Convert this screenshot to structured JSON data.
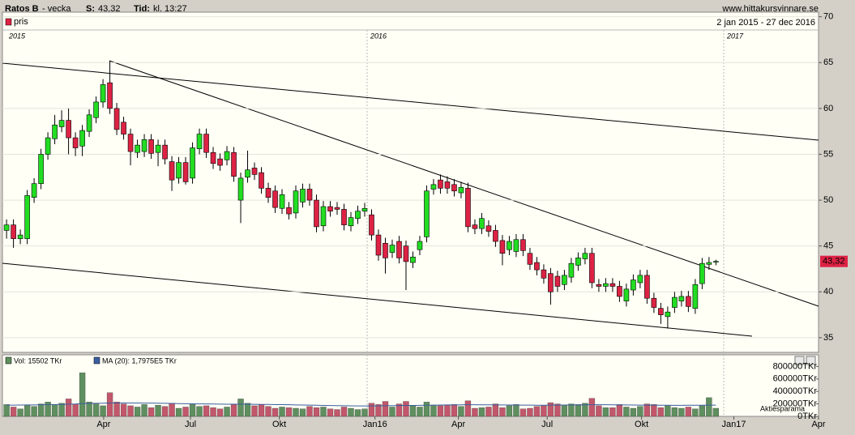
{
  "chart_data": {
    "type": "candlestick",
    "title": "Ratos B",
    "subtitle": "- vecka",
    "quote_label": "S:",
    "quote": "43,32",
    "time_label": "Tid:",
    "time": "kl. 13:27",
    "source": "www.hittakursvinnare.se",
    "legend": "pris",
    "date_range": "2 jan 2015 - 27 dec 2016",
    "year_labels": [
      "2015",
      "2016",
      "2017"
    ],
    "up_color": "#22dd22",
    "down_color": "#dd2244",
    "open": [
      46.7,
      47.3,
      45.8,
      45.8,
      50.3,
      51.8,
      55,
      56.7,
      58,
      58.7,
      56.8,
      55.9,
      57.5,
      59,
      60.7,
      62.8,
      60,
      58.5,
      57.2,
      55.2,
      55.3,
      56.6,
      55.2,
      56,
      54.2,
      52.4,
      54.1,
      52.4,
      55.6,
      57.2,
      55.2,
      54.5,
      54.4,
      55.2,
      50,
      52.5,
      53.5,
      53,
      51.3,
      51,
      49.1,
      49.2,
      48.6,
      49.8,
      51.2,
      50,
      47.2,
      49.3,
      49.2,
      49,
      47.2,
      48,
      48.8,
      48.4,
      46.2,
      45.3,
      44.3,
      45.5,
      45,
      43.2,
      44.6,
      46,
      51.2,
      52.2,
      52,
      51.7,
      50.8,
      51.3,
      47.3,
      46.9,
      47.2,
      46.7,
      45.6,
      44.6,
      44.4,
      45.7,
      44.2,
      43.2,
      42.4,
      42,
      41.7,
      40.8,
      41.6,
      42.9,
      43.6,
      44.2,
      40.8,
      40.6,
      40.9,
      40.6,
      39,
      40.2,
      41,
      41.8,
      39.3,
      38.2,
      37.3,
      38.3,
      39,
      39.5,
      38.2,
      40.9,
      43,
      43.3
    ],
    "high": [
      47.9,
      47.9,
      46.8,
      51.1,
      52.4,
      55.6,
      57.4,
      59.3,
      59.8,
      60,
      57.4,
      58.2,
      59.9,
      61.3,
      63.2,
      65.2,
      60.6,
      59.1,
      57.8,
      56.6,
      57.2,
      57.2,
      56.6,
      56.6,
      54.8,
      54.7,
      54.7,
      56.3,
      57.8,
      57.8,
      55.8,
      55.1,
      55.9,
      55.8,
      53,
      55.4,
      54.1,
      53.6,
      51.9,
      51.6,
      51.2,
      49.8,
      51.6,
      51.8,
      51.8,
      50.6,
      49.9,
      49.9,
      49.8,
      49.6,
      48.7,
      49.4,
      49.7,
      49,
      46.8,
      45.9,
      45.7,
      46.1,
      45.6,
      44.4,
      46.1,
      51.6,
      52.3,
      52.8,
      52.6,
      52.3,
      52,
      51.9,
      47.9,
      48.6,
      47.8,
      47.3,
      46.2,
      46.1,
      46.3,
      46.3,
      44.8,
      43.8,
      43,
      42.6,
      42.3,
      42.4,
      43.7,
      44.3,
      44.8,
      44.8,
      41.4,
      41.5,
      41.5,
      41.2,
      40.9,
      41.9,
      42.4,
      42.4,
      39.9,
      38.8,
      38.4,
      40,
      40.1,
      40.1,
      41.4,
      43.7,
      43.8,
      43.5
    ],
    "low": [
      45.8,
      44.8,
      45.2,
      45.2,
      49.7,
      51.2,
      54.4,
      56.1,
      57.4,
      55,
      54.8,
      54.8,
      56.9,
      58.4,
      60.1,
      59.4,
      57.1,
      56.6,
      53.8,
      54.6,
      54.7,
      54.5,
      53.7,
      53.9,
      51,
      51.8,
      51.7,
      51.8,
      55,
      54.6,
      53.4,
      53.2,
      53.8,
      52,
      47.5,
      51.9,
      52.2,
      50.7,
      49.7,
      48.6,
      48.5,
      47.9,
      48,
      49.2,
      49.4,
      46.5,
      46.6,
      48.2,
      48.4,
      46.7,
      46.6,
      47.4,
      48.2,
      45.6,
      43.4,
      42,
      43.7,
      43.1,
      40.2,
      42.6,
      44,
      45.4,
      50.6,
      50.7,
      50.7,
      50.4,
      50.2,
      46.5,
      46.3,
      46.3,
      46,
      44.9,
      42.9,
      44,
      43.8,
      43.9,
      42.4,
      41.8,
      40.9,
      38.6,
      40,
      40.2,
      41,
      42.3,
      43,
      40.4,
      40,
      40,
      40,
      38.9,
      38.4,
      39.6,
      40.4,
      38.7,
      37.7,
      36.5,
      36,
      37.7,
      38.4,
      37.8,
      37.6,
      40.3,
      42.4,
      42.9
    ],
    "close": [
      47.3,
      45.8,
      46.2,
      50.5,
      51.8,
      55,
      56.8,
      58.2,
      58.7,
      56.8,
      55.7,
      57.6,
      59.3,
      60.7,
      62.6,
      60,
      57.7,
      57.2,
      55.3,
      56,
      56.6,
      55.1,
      56,
      54.5,
      52.2,
      54.1,
      52,
      55.7,
      57.2,
      55.2,
      54,
      53.8,
      55.3,
      52.6,
      52.4,
      53.3,
      52.8,
      51.3,
      50.3,
      49.2,
      50.6,
      48.5,
      51,
      51.2,
      50,
      47.1,
      49.3,
      48.8,
      49,
      47.3,
      48.1,
      48.8,
      49.1,
      46.2,
      44,
      43.7,
      45.1,
      43.7,
      43.3,
      43.8,
      45.5,
      51,
      51.7,
      51.3,
      51.3,
      51,
      51.4,
      47.1,
      46.9,
      48,
      46.6,
      45.5,
      44.2,
      45.5,
      45.7,
      44.5,
      43,
      42.4,
      41.5,
      40,
      40.6,
      41.8,
      43.1,
      43.7,
      44.2,
      41,
      40.6,
      40.9,
      40.6,
      39.5,
      40.3,
      41.3,
      41.8,
      39.3,
      38.3,
      37.5,
      37.8,
      39.4,
      39.5,
      38.4,
      40.8,
      43.1,
      43.2,
      43.32
    ],
    "price_tag": {
      "value": 43.32,
      "label": "43,32"
    },
    "xlim": [
      -0.6,
      117.9
    ],
    "xticks": [
      {
        "value": 14.1,
        "label": "Apr"
      },
      {
        "value": 26.7,
        "label": "Jul"
      },
      {
        "value": 39.6,
        "label": "Okt"
      },
      {
        "value": 53.5,
        "label": "Jan16"
      },
      {
        "value": 65.6,
        "label": "Apr"
      },
      {
        "value": 78.5,
        "label": "Jul"
      },
      {
        "value": 92.2,
        "label": "Okt"
      },
      {
        "value": 105.6,
        "label": "Jan17"
      },
      {
        "value": 117.9,
        "label": "Apr"
      }
    ],
    "ylim": [
      33.4,
      70.5
    ],
    "yticks": [
      35,
      40,
      45,
      50,
      55,
      60,
      65,
      70
    ],
    "grid": true,
    "volume_legend": "Vol: 15502 TKr",
    "ma_legend": "MA (20): 1,7975E5 TKr",
    "watermark": "Aktiesparama",
    "volume_up_color": "#5f8f5f",
    "volume_down_color": "#c2576b",
    "ma_color": "#3a5fa0",
    "volume": [
      190000,
      150000,
      120000,
      180000,
      160000,
      200000,
      230000,
      190000,
      210000,
      280000,
      200000,
      700000,
      230000,
      200000,
      170000,
      380000,
      230000,
      200000,
      170000,
      150000,
      190000,
      140000,
      180000,
      160000,
      210000,
      130000,
      150000,
      190000,
      160000,
      170000,
      140000,
      120000,
      150000,
      200000,
      280000,
      210000,
      170000,
      190000,
      160000,
      130000,
      150000,
      140000,
      130000,
      120000,
      160000,
      140000,
      150000,
      120000,
      110000,
      150000,
      130000,
      110000,
      120000,
      210000,
      190000,
      240000,
      150000,
      200000,
      240000,
      170000,
      150000,
      230000,
      180000,
      170000,
      180000,
      190000,
      160000,
      250000,
      130000,
      140000,
      150000,
      200000,
      140000,
      170000,
      190000,
      120000,
      130000,
      160000,
      170000,
      220000,
      200000,
      180000,
      200000,
      190000,
      210000,
      290000,
      170000,
      140000,
      140000,
      190000,
      150000,
      130000,
      160000,
      200000,
      190000,
      140000,
      170000,
      140000,
      130000,
      150000,
      120000,
      170000,
      300000,
      130000
    ],
    "ma": [
      180000,
      181000,
      182000,
      183000,
      184000,
      186000,
      188000,
      190000,
      192000,
      195000,
      198000,
      205000,
      208000,
      210000,
      211000,
      214000,
      215000,
      216000,
      215000,
      214000,
      213000,
      212000,
      211000,
      209000,
      208000,
      205000,
      203000,
      202000,
      200000,
      199000,
      198000,
      196000,
      195000,
      194000,
      195000,
      194000,
      193000,
      192000,
      191000,
      189000,
      188000,
      186000,
      184000,
      182000,
      180000,
      178000,
      176000,
      174000,
      172000,
      170000,
      169000,
      168000,
      167000,
      168000,
      169000,
      171000,
      172000,
      173000,
      175000,
      176000,
      177000,
      179000,
      181000,
      182000,
      183000,
      184000,
      185000,
      187000,
      186000,
      185000,
      185000,
      184000,
      183000,
      182000,
      182000,
      181000,
      180000,
      179000,
      179000,
      180000,
      181000,
      182000,
      183000,
      184000,
      185000,
      187000,
      187000,
      186000,
      185000,
      184000,
      183000,
      182000,
      181000,
      180000,
      180000,
      179000,
      178000,
      177000,
      177000,
      178000,
      178000,
      179000,
      180000,
      180000
    ],
    "vol_ylim": [
      0,
      987000
    ],
    "vol_yticks": [
      {
        "value": 0,
        "label": "0TKr"
      },
      {
        "value": 200000,
        "label": "200000TKr"
      },
      {
        "value": 400000,
        "label": "400000TKr"
      },
      {
        "value": 600000,
        "label": "600000TKr"
      },
      {
        "value": 800000,
        "label": "800000TKr"
      }
    ]
  }
}
